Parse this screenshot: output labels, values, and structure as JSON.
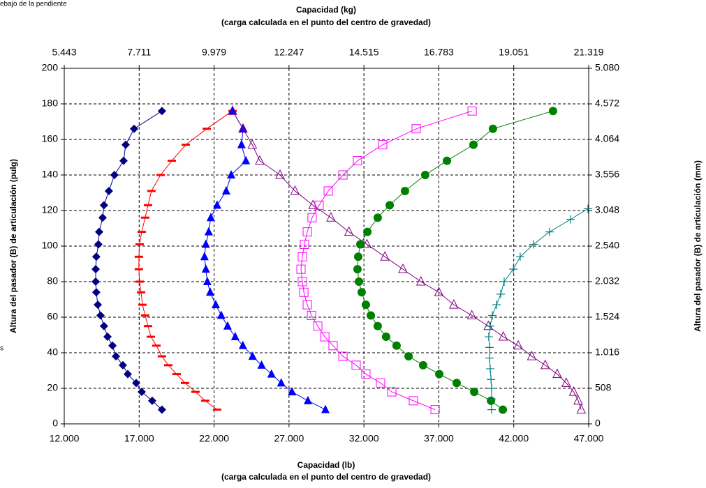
{
  "annotations": [
    "ebajo de la pendiente",
    "s"
  ],
  "chart_data": {
    "type": "scatter",
    "x2_label": [
      "Capacidad (kg)",
      "(carga calculada en el punto del centro de gravedad)"
    ],
    "x_label": [
      "Capacidad (lb)",
      "(carga calculada en el punto del centro de gravedad)"
    ],
    "y_label": "Altura del pasador (B) de articulación (pulg)",
    "y2_label": "Altura del pasador (B) de articulación (mm)",
    "xlim": [
      12000,
      47000
    ],
    "xticks": [
      {
        "value": 12000,
        "label": "12.000"
      },
      {
        "value": 17000,
        "label": "17.000"
      },
      {
        "value": 22000,
        "label": "22.000"
      },
      {
        "value": 27000,
        "label": "27.000"
      },
      {
        "value": 32000,
        "label": "32.000"
      },
      {
        "value": 37000,
        "label": "37.000"
      },
      {
        "value": 42000,
        "label": "42.000"
      },
      {
        "value": 47000,
        "label": "47.000"
      }
    ],
    "x2lim": [
      5.443,
      21.319
    ],
    "x2ticks": [
      5.443,
      7.711,
      9.979,
      12.247,
      14.515,
      16.783,
      19.051,
      21.319
    ],
    "ylim": [
      0,
      200
    ],
    "yticks": [
      0,
      20,
      40,
      60,
      80,
      100,
      120,
      140,
      160,
      180,
      200
    ],
    "y2lim": [
      0,
      5080
    ],
    "y2ticks": [
      0,
      508,
      {
        "value": 1016,
        "label": "1.016"
      },
      {
        "value": 1524,
        "label": "1.524"
      },
      {
        "value": 2032,
        "label": "2.032"
      },
      {
        "value": 2540,
        "label": "2.540"
      },
      {
        "value": 3048,
        "label": "3.048"
      },
      {
        "value": 3556,
        "label": "3.556"
      },
      {
        "value": 4064,
        "label": "4.064"
      },
      {
        "value": 4572,
        "label": "4.572"
      },
      {
        "value": 5080,
        "label": "5.080"
      }
    ],
    "grid": true,
    "series": [
      {
        "color": "#000080",
        "marker": "diamond",
        "x": [
          18520,
          17870,
          17170,
          16800,
          16240,
          15910,
          15450,
          15220,
          14890,
          14650,
          14420,
          14240,
          14140,
          14100,
          14100,
          14140,
          14280,
          14330,
          14560,
          14650,
          14980,
          15350,
          15960,
          16100,
          16660,
          18520
        ],
        "y": [
          8,
          13,
          18,
          23,
          28,
          33,
          38,
          44,
          49,
          55,
          61,
          67,
          74,
          80,
          87,
          94,
          101,
          108,
          116,
          123,
          131,
          140,
          148,
          157,
          166,
          176
        ]
      },
      {
        "color": "#ff0000",
        "marker": "dash",
        "x": [
          22200,
          21410,
          20760,
          20060,
          19500,
          18940,
          18520,
          18150,
          17780,
          17590,
          17400,
          17220,
          17130,
          17030,
          16980,
          16980,
          17030,
          17170,
          17400,
          17590,
          17820,
          18430,
          19180,
          20110,
          21510,
          23230
        ],
        "y": [
          8,
          13,
          18,
          23,
          28,
          33,
          38,
          44,
          49,
          55,
          61,
          67,
          74,
          80,
          87,
          94,
          101,
          108,
          116,
          123,
          131,
          140,
          148,
          157,
          166,
          176
        ]
      },
      {
        "color": "#0000ff",
        "marker": "triangle",
        "x": [
          29430,
          28260,
          27200,
          26480,
          25830,
          25170,
          24570,
          23920,
          23410,
          22900,
          22480,
          22110,
          21740,
          21550,
          21450,
          21360,
          21450,
          21640,
          21780,
          22200,
          22810,
          23140,
          24120,
          23830,
          23930,
          23230
        ],
        "y": [
          8,
          13,
          18,
          23,
          28,
          33,
          38,
          44,
          49,
          55,
          61,
          67,
          74,
          80,
          87,
          94,
          101,
          108,
          116,
          123,
          131,
          140,
          148,
          157,
          166,
          176
        ]
      },
      {
        "color": "#800080",
        "marker": "triangle-open",
        "x": [
          46500,
          46300,
          46000,
          45500,
          44900,
          44100,
          43200,
          42300,
          41300,
          40300,
          39200,
          38000,
          37000,
          35800,
          34600,
          33400,
          32200,
          31000,
          29800,
          28600,
          27400,
          26400,
          25050,
          24550,
          23930,
          23230
        ],
        "y": [
          8,
          13,
          18,
          23,
          28,
          33,
          38,
          44,
          49,
          55,
          61,
          67,
          74,
          80,
          87,
          94,
          101,
          108,
          116,
          123,
          131,
          140,
          148,
          157,
          166,
          176
        ]
      },
      {
        "color": "#ff00ff",
        "marker": "square-open",
        "x": [
          36750,
          35300,
          33860,
          33110,
          32130,
          31480,
          30600,
          29940,
          29390,
          28920,
          28500,
          28220,
          27990,
          27890,
          27800,
          27890,
          28030,
          28220,
          28540,
          29010,
          29620,
          30600,
          31570,
          33250,
          35490,
          39220
        ],
        "y": [
          8,
          13,
          18,
          23,
          28,
          33,
          38,
          44,
          49,
          55,
          61,
          67,
          74,
          80,
          87,
          94,
          101,
          108,
          116,
          123,
          131,
          140,
          148,
          157,
          166,
          176
        ]
      },
      {
        "color": "#008000",
        "marker": "circle",
        "x": [
          41270,
          40480,
          39360,
          38190,
          37030,
          35950,
          34980,
          34180,
          33480,
          32920,
          32460,
          32130,
          31850,
          31670,
          31570,
          31620,
          31760,
          32230,
          32920,
          33720,
          34740,
          36090,
          37540,
          39310,
          40610,
          44620
        ],
        "y": [
          8,
          13,
          18,
          23,
          28,
          33,
          38,
          44,
          49,
          55,
          61,
          67,
          74,
          80,
          87,
          94,
          101,
          108,
          116,
          123,
          131,
          140,
          148,
          157,
          166,
          176
        ]
      },
      {
        "color": "#008080",
        "marker": "plus",
        "x": [
          40520,
          40520,
          40520,
          40480,
          40430,
          40380,
          40380,
          40330,
          40430,
          40570,
          40850,
          41130,
          41360,
          41970,
          42430,
          43320,
          44390,
          45790,
          46950
        ],
        "y": [
          8,
          14,
          20,
          25,
          31,
          37,
          43,
          49,
          55,
          61,
          67,
          73,
          80,
          87,
          94,
          101,
          108,
          115,
          121
        ]
      }
    ]
  }
}
